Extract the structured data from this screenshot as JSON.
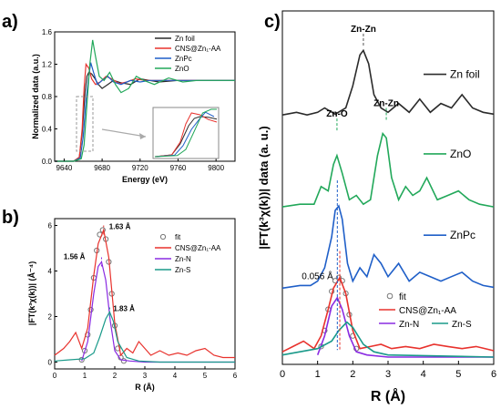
{
  "panel_labels": {
    "a": "a)",
    "b": "b)",
    "c": "c)"
  },
  "colors": {
    "zn_foil": "#2b2b2b",
    "cns": "#e8322d",
    "znpc": "#1f5fc8",
    "zno": "#22a85a",
    "zn_n": "#8a2be2",
    "zn_s": "#1a9a8a",
    "fit": "#777777"
  },
  "chart_data": [
    {
      "type": "line",
      "panel": "a",
      "xlabel": "Energy (eV)",
      "ylabel": "Normalized data (a.u.)",
      "xlim": [
        9630,
        9820
      ],
      "ylim": [
        0,
        1.6
      ],
      "xticks": [
        "9640",
        "9680",
        "9720",
        "9760",
        "9800"
      ],
      "yticks": [
        "0.0",
        "0.4",
        "0.8",
        "1.2",
        "1.6"
      ],
      "legend_position": "top-right",
      "series": [
        {
          "name": "Zn foil",
          "color": "#2b2b2b",
          "x": [
            9630,
            9650,
            9656,
            9659,
            9662,
            9664,
            9666,
            9669,
            9672,
            9676,
            9680,
            9686,
            9692,
            9700,
            9710,
            9720,
            9730,
            9740,
            9760,
            9780,
            9800,
            9820
          ],
          "y": [
            0,
            0,
            0.05,
            0.35,
            0.85,
            1.05,
            1.1,
            1.08,
            1.03,
            0.95,
            0.9,
            0.95,
            1.0,
            0.97,
            0.95,
            1.02,
            1.0,
            0.98,
            1.0,
            1.0,
            1.0,
            1.0
          ]
        },
        {
          "name": "CNS@Zn₁-AA",
          "color": "#e8322d",
          "x": [
            9630,
            9650,
            9656,
            9659,
            9661,
            9663,
            9666,
            9669,
            9673,
            9678,
            9684,
            9690,
            9698,
            9706,
            9715,
            9725,
            9740,
            9760,
            9780,
            9800,
            9820
          ],
          "y": [
            0,
            0,
            0.05,
            0.4,
            0.9,
            1.2,
            1.15,
            1.02,
            0.95,
            0.98,
            1.05,
            1.02,
            0.96,
            0.98,
            1.02,
            1.0,
            1.0,
            1.0,
            1.0,
            1.0,
            1.0
          ]
        },
        {
          "name": "ZnPc",
          "color": "#1f5fc8",
          "x": [
            9630,
            9650,
            9657,
            9660,
            9663,
            9666,
            9668,
            9671,
            9675,
            9680,
            9686,
            9692,
            9700,
            9710,
            9720,
            9730,
            9745,
            9760,
            9780,
            9800,
            9820
          ],
          "y": [
            0,
            0,
            0.04,
            0.3,
            0.75,
            1.05,
            1.22,
            1.1,
            0.95,
            1.0,
            1.05,
            0.98,
            0.95,
            1.0,
            0.98,
            1.0,
            1.0,
            1.0,
            1.0,
            1.0,
            1.0
          ]
        },
        {
          "name": "ZnO",
          "color": "#22a85a",
          "x": [
            9630,
            9650,
            9658,
            9661,
            9664,
            9667,
            9670,
            9673,
            9677,
            9682,
            9688,
            9694,
            9700,
            9708,
            9716,
            9724,
            9735,
            9750,
            9765,
            9780,
            9800,
            9820
          ],
          "y": [
            0,
            0,
            0.03,
            0.2,
            0.7,
            1.2,
            1.5,
            1.3,
            1.05,
            1.0,
            1.1,
            0.95,
            0.85,
            0.9,
            1.05,
            1.0,
            0.95,
            1.03,
            0.98,
            1.0,
            1.0,
            1.0
          ]
        }
      ]
    },
    {
      "type": "line",
      "panel": "b",
      "xlabel": "R (Å)",
      "ylabel": "|FT(k³χ(k))| (Å⁻⁴)",
      "xlim": [
        0,
        6
      ],
      "ylim": [
        -0.3,
        6.3
      ],
      "xticks": [
        "0",
        "1",
        "2",
        "3",
        "4",
        "5",
        "6"
      ],
      "yticks": [
        "0",
        "2",
        "4",
        "6"
      ],
      "legend_position": "top-right",
      "annotations": [
        {
          "text": "1.63 Å",
          "x": 1.63,
          "y": 5.8,
          "color": "#e8322d"
        },
        {
          "text": "1.56 Å",
          "x": 1.56,
          "y": 4.4,
          "color": "#8a2be2"
        },
        {
          "text": "1.83 Å",
          "x": 1.83,
          "y": 2.2,
          "color": "#1a9a8a"
        }
      ],
      "series": [
        {
          "name": "fit",
          "color": "#777777",
          "style": "markers",
          "x": [
            0.9,
            1.0,
            1.1,
            1.2,
            1.3,
            1.4,
            1.5,
            1.6,
            1.7,
            1.8,
            1.9,
            2.0,
            2.1,
            2.2,
            2.3
          ],
          "y": [
            0.1,
            0.5,
            1.2,
            2.3,
            3.7,
            4.9,
            5.6,
            5.8,
            5.4,
            4.4,
            3.0,
            1.6,
            0.6,
            0.2,
            0.05
          ]
        },
        {
          "name": "CNS@Zn₁-AA",
          "color": "#e8322d",
          "x": [
            0,
            0.3,
            0.5,
            0.7,
            0.9,
            1.1,
            1.3,
            1.45,
            1.63,
            1.8,
            2.0,
            2.2,
            2.4,
            2.6,
            2.8,
            3.0,
            3.2,
            3.5,
            3.8,
            4.1,
            4.4,
            4.7,
            5.0,
            5.3,
            5.6,
            6.0
          ],
          "y": [
            0.3,
            0.6,
            0.9,
            1.3,
            0.6,
            1.5,
            3.8,
            5.2,
            5.8,
            4.6,
            1.7,
            0.3,
            0.6,
            0.4,
            0.9,
            0.6,
            0.3,
            0.5,
            0.3,
            0.4,
            0.3,
            0.5,
            0.6,
            0.3,
            0.2,
            0.2
          ]
        },
        {
          "name": "Zn-N",
          "color": "#8a2be2",
          "x": [
            0.9,
            1.1,
            1.3,
            1.45,
            1.56,
            1.7,
            1.85,
            2.0,
            2.2,
            2.5,
            3.0,
            4.0,
            6.0
          ],
          "y": [
            0.05,
            0.9,
            3.0,
            4.2,
            4.4,
            3.6,
            1.8,
            0.5,
            0.1,
            0.05,
            0,
            0,
            0
          ]
        },
        {
          "name": "Zn-S",
          "color": "#1a9a8a",
          "x": [
            0,
            0.5,
            1.0,
            1.3,
            1.5,
            1.7,
            1.83,
            1.95,
            2.1,
            2.4,
            2.8,
            3.5,
            6.0
          ],
          "y": [
            0.05,
            0.1,
            0.15,
            0.4,
            1.1,
            1.9,
            2.2,
            1.8,
            0.9,
            0.2,
            0.05,
            0,
            0
          ]
        }
      ]
    },
    {
      "type": "line",
      "panel": "c",
      "xlabel": "R (Å)",
      "ylabel": "|FT(k³χ(k))| data (a. u.)",
      "xlim": [
        0,
        6
      ],
      "xticks": [
        "0",
        "1",
        "2",
        "3",
        "4",
        "5",
        "6"
      ],
      "annotations": [
        {
          "text": "Zn-Zn",
          "color": "#555555"
        },
        {
          "text": "Zn-O",
          "color": "#22a85a"
        },
        {
          "text": "Zn-Zn",
          "color": "#22a85a"
        },
        {
          "text": "0.056 Å",
          "color": "#000000"
        }
      ],
      "labels": {
        "zn_foil": "Zn foil",
        "zno": "ZnO",
        "znpc": "ZnPc"
      },
      "legend": [
        "fit",
        "CNS@Zn₁-AA",
        "Zn-N",
        "Zn-S"
      ],
      "series": [
        {
          "name": "Zn foil",
          "color": "#2b2b2b",
          "offset": 0.68,
          "x": [
            0,
            0.4,
            0.7,
            1.0,
            1.2,
            1.5,
            1.8,
            2.0,
            2.2,
            2.3,
            2.45,
            2.6,
            2.8,
            3.0,
            3.3,
            3.6,
            3.9,
            4.2,
            4.5,
            4.8,
            5.1,
            5.4,
            5.7,
            6.0
          ],
          "y": [
            0.02,
            0.05,
            0.02,
            0.05,
            0.1,
            0.03,
            0.1,
            0.35,
            0.7,
            0.75,
            0.6,
            0.25,
            0.1,
            0.05,
            0.15,
            0.05,
            0.2,
            0.05,
            0.15,
            0.1,
            0.25,
            0.1,
            0.05,
            0.03
          ]
        },
        {
          "name": "ZnO",
          "color": "#22a85a",
          "offset": 0.42,
          "x": [
            0,
            0.5,
            0.9,
            1.1,
            1.3,
            1.45,
            1.55,
            1.7,
            1.9,
            2.1,
            2.3,
            2.5,
            2.7,
            2.85,
            2.95,
            3.1,
            3.3,
            3.5,
            3.7,
            3.9,
            4.1,
            4.4,
            4.7,
            5.0,
            5.3,
            5.6,
            6.0
          ],
          "y": [
            0.02,
            0.05,
            0.05,
            0.25,
            0.2,
            0.5,
            0.6,
            0.4,
            0.1,
            0.15,
            0.05,
            0.1,
            0.6,
            0.85,
            0.8,
            0.35,
            0.1,
            0.25,
            0.15,
            0.2,
            0.35,
            0.1,
            0.15,
            0.2,
            0.1,
            0.05,
            0.02
          ]
        },
        {
          "name": "ZnPc",
          "color": "#1f5fc8",
          "offset": 0.19,
          "x": [
            0,
            0.5,
            0.8,
            1.0,
            1.2,
            1.4,
            1.5,
            1.6,
            1.7,
            1.85,
            2.0,
            2.2,
            2.4,
            2.6,
            2.8,
            3.0,
            3.3,
            3.6,
            3.9,
            4.2,
            4.5,
            4.8,
            5.1,
            5.4,
            5.7,
            6.0
          ],
          "y": [
            0.02,
            0.05,
            0.05,
            0.1,
            0.25,
            0.6,
            0.9,
            0.95,
            0.8,
            0.3,
            0.1,
            0.25,
            0.15,
            0.4,
            0.3,
            0.15,
            0.3,
            0.1,
            0.2,
            0.15,
            0.1,
            0.15,
            0.2,
            0.1,
            0.05,
            0.03
          ]
        },
        {
          "name": "fit",
          "color": "#777777",
          "style": "markers",
          "offset": 0.0,
          "x": [
            1.1,
            1.2,
            1.3,
            1.4,
            1.5,
            1.6,
            1.7,
            1.8,
            1.9,
            2.0,
            2.1
          ],
          "y": [
            0.1,
            0.25,
            0.45,
            0.62,
            0.72,
            0.75,
            0.72,
            0.6,
            0.4,
            0.2,
            0.08
          ]
        },
        {
          "name": "CNS@Zn₁-AA",
          "color": "#e8322d",
          "offset": 0.0,
          "x": [
            0,
            0.3,
            0.6,
            0.9,
            1.1,
            1.3,
            1.45,
            1.63,
            1.8,
            2.0,
            2.2,
            2.5,
            2.8,
            3.1,
            3.5,
            3.9,
            4.3,
            4.7,
            5.1,
            5.5,
            6.0
          ],
          "y": [
            0.05,
            0.1,
            0.15,
            0.08,
            0.2,
            0.45,
            0.65,
            0.75,
            0.6,
            0.25,
            0.08,
            0.1,
            0.12,
            0.08,
            0.1,
            0.08,
            0.12,
            0.1,
            0.08,
            0.1,
            0.06
          ]
        },
        {
          "name": "Zn-N",
          "color": "#8a2be2",
          "offset": 0.0,
          "x": [
            1.0,
            1.2,
            1.4,
            1.56,
            1.7,
            1.9,
            2.1,
            2.4,
            3.0,
            6.0
          ],
          "y": [
            0.02,
            0.2,
            0.48,
            0.56,
            0.45,
            0.2,
            0.05,
            0.02,
            0,
            0
          ]
        },
        {
          "name": "Zn-S",
          "color": "#1a9a8a",
          "offset": 0.0,
          "x": [
            0,
            0.5,
            1.0,
            1.4,
            1.6,
            1.83,
            2.0,
            2.3,
            2.6,
            3.0,
            6.0
          ],
          "y": [
            0.02,
            0.05,
            0.08,
            0.15,
            0.25,
            0.33,
            0.28,
            0.12,
            0.05,
            0.02,
            0
          ]
        }
      ]
    }
  ]
}
